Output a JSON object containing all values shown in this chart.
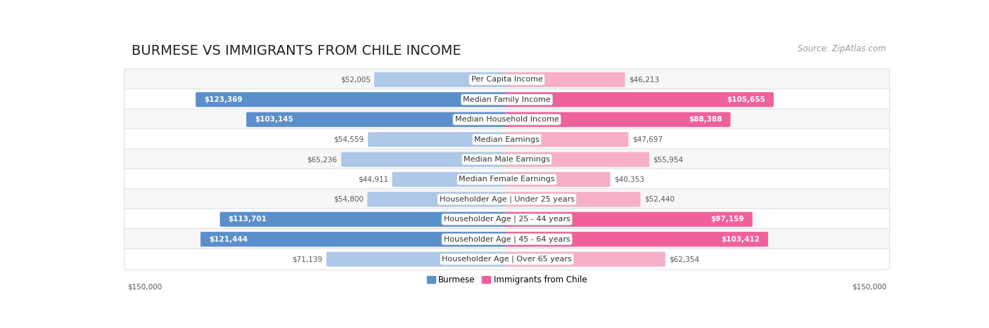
{
  "title": "BURMESE VS IMMIGRANTS FROM CHILE INCOME",
  "source": "Source: ZipAtlas.com",
  "categories": [
    "Per Capita Income",
    "Median Family Income",
    "Median Household Income",
    "Median Earnings",
    "Median Male Earnings",
    "Median Female Earnings",
    "Householder Age | Under 25 years",
    "Householder Age | 25 - 44 years",
    "Householder Age | 45 - 64 years",
    "Householder Age | Over 65 years"
  ],
  "burmese_values": [
    52005,
    123369,
    103145,
    54559,
    65236,
    44911,
    54800,
    113701,
    121444,
    71139
  ],
  "chile_values": [
    46213,
    105655,
    88388,
    47697,
    55954,
    40353,
    52440,
    97159,
    103412,
    62354
  ],
  "max_value": 150000,
  "burmese_color_strong": "#5b8fcc",
  "burmese_color_light": "#adc8e8",
  "chile_color_strong": "#f0609a",
  "chile_color_light": "#f7aec8",
  "background_color": "#ffffff",
  "row_bg_even": "#f7f7f7",
  "row_bg_odd": "#ffffff",
  "title_fontsize": 14,
  "source_fontsize": 8.5,
  "label_fontsize": 8,
  "value_fontsize": 7.5,
  "legend_fontsize": 8.5,
  "xlabel_left": "$150,000",
  "xlabel_right": "$150,000",
  "threshold_strong": 80000
}
